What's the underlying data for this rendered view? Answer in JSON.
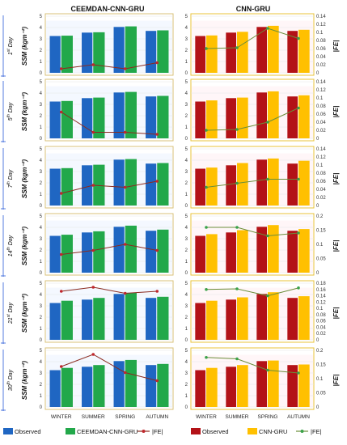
{
  "titles": {
    "left": "CEEMDAN-CNN-GRU",
    "right": "CNN-GRU"
  },
  "y_label": "SSM (kgm⁻²)",
  "y2_label": "|FE|",
  "days": [
    "1st Day",
    "5th Day",
    "7th Day",
    "14th Day",
    "21st Day",
    "30th Day"
  ],
  "legends": {
    "left": [
      "Observed",
      "CEEMDAN-CNN-GRU",
      "|FE|"
    ],
    "right": [
      "Observed",
      "CNN-GRU",
      "|FE|"
    ]
  },
  "colors": {
    "observed_left": "#1f66c2",
    "pred_left": "#22a84a",
    "fe_left": "#8b2a1e",
    "observed_right": "#b31217",
    "pred_right": "#ffc000",
    "fe_right": "#6b8e3a",
    "panel_border_left": "#d8c27a",
    "panel_border_right": "#e8c33a"
  },
  "chart_data": [
    {
      "type": "bar",
      "model": "CEEMDAN-CNN-GRU",
      "day": "1st Day",
      "categories": [
        "WINTER",
        "SUMMER",
        "SPRING",
        "AUTUMN"
      ],
      "series": [
        {
          "name": "Observed",
          "values": [
            3.25,
            3.55,
            4.05,
            3.7
          ]
        },
        {
          "name": "CEEMDAN-CNN-GRU",
          "values": [
            3.28,
            3.58,
            4.1,
            3.75
          ]
        },
        {
          "name": "|FE|",
          "axis": "secondary",
          "values": [
            0.01,
            0.02,
            0.01,
            0.025
          ]
        }
      ],
      "ylim": [
        0,
        5
      ],
      "y2lim": [
        0,
        0.14
      ]
    },
    {
      "type": "bar",
      "model": "CEEMDAN-CNN-GRU",
      "day": "5th Day",
      "categories": [
        "WINTER",
        "SUMMER",
        "SPRING",
        "AUTUMN"
      ],
      "series": [
        {
          "name": "Observed",
          "values": [
            3.25,
            3.55,
            4.05,
            3.7
          ]
        },
        {
          "name": "CEEMDAN-CNN-GRU",
          "values": [
            3.3,
            3.6,
            4.1,
            3.75
          ]
        },
        {
          "name": "|FE|",
          "axis": "secondary",
          "values": [
            0.065,
            0.015,
            0.015,
            0.01
          ]
        }
      ],
      "ylim": [
        0,
        5
      ],
      "y2lim": [
        0,
        0.14
      ]
    },
    {
      "type": "bar",
      "model": "CEEMDAN-CNN-GRU",
      "day": "7th Day",
      "categories": [
        "WINTER",
        "SUMMER",
        "SPRING",
        "AUTUMN"
      ],
      "series": [
        {
          "name": "Observed",
          "values": [
            3.25,
            3.55,
            4.05,
            3.7
          ]
        },
        {
          "name": "CEEMDAN-CNN-GRU",
          "values": [
            3.3,
            3.6,
            4.1,
            3.75
          ]
        },
        {
          "name": "|FE|",
          "axis": "secondary",
          "values": [
            0.03,
            0.05,
            0.045,
            0.06
          ]
        }
      ],
      "ylim": [
        0,
        5
      ],
      "y2lim": [
        0,
        0.14
      ]
    },
    {
      "type": "bar",
      "model": "CEEMDAN-CNN-GRU",
      "day": "14th Day",
      "categories": [
        "WINTER",
        "SUMMER",
        "SPRING",
        "AUTUMN"
      ],
      "series": [
        {
          "name": "Observed",
          "values": [
            3.25,
            3.55,
            4.05,
            3.7
          ]
        },
        {
          "name": "CEEMDAN-CNN-GRU",
          "values": [
            3.35,
            3.65,
            4.15,
            3.8
          ]
        },
        {
          "name": "|FE|",
          "axis": "secondary",
          "values": [
            0.045,
            0.055,
            0.07,
            0.055
          ]
        }
      ],
      "ylim": [
        0,
        5
      ],
      "y2lim": [
        0,
        0.14
      ]
    },
    {
      "type": "bar",
      "model": "CEEMDAN-CNN-GRU",
      "day": "21st Day",
      "categories": [
        "WINTER",
        "SUMMER",
        "SPRING",
        "AUTUMN"
      ],
      "series": [
        {
          "name": "Observed",
          "values": [
            3.25,
            3.55,
            4.05,
            3.7
          ]
        },
        {
          "name": "CEEMDAN-CNN-GRU",
          "values": [
            3.45,
            3.7,
            4.15,
            3.8
          ]
        },
        {
          "name": "|FE|",
          "axis": "secondary",
          "values": [
            0.12,
            0.13,
            0.115,
            0.12
          ]
        }
      ],
      "ylim": [
        0,
        5
      ],
      "y2lim": [
        0,
        0.14
      ]
    },
    {
      "type": "bar",
      "model": "CEEMDAN-CNN-GRU",
      "day": "30th Day",
      "categories": [
        "WINTER",
        "SUMMER",
        "SPRING",
        "AUTUMN"
      ],
      "series": [
        {
          "name": "Observed",
          "values": [
            3.25,
            3.55,
            4.05,
            3.7
          ]
        },
        {
          "name": "CEEMDAN-CNN-GRU",
          "values": [
            3.45,
            3.7,
            4.15,
            3.8
          ]
        },
        {
          "name": "|FE|",
          "axis": "secondary",
          "values": [
            0.1,
            0.13,
            0.085,
            0.065
          ]
        }
      ],
      "ylim": [
        0,
        5
      ],
      "y2lim": [
        0,
        0.14
      ]
    },
    {
      "type": "bar",
      "model": "CNN-GRU",
      "day": "1st Day",
      "categories": [
        "WINTER",
        "SUMMER",
        "SPRING",
        "AUTUMN"
      ],
      "series": [
        {
          "name": "Observed",
          "values": [
            3.25,
            3.55,
            4.05,
            3.7
          ]
        },
        {
          "name": "CNN-GRU",
          "values": [
            3.3,
            3.62,
            4.15,
            3.8
          ]
        },
        {
          "name": "|FE|",
          "axis": "secondary",
          "values": [
            0.06,
            0.062,
            0.11,
            0.085
          ]
        }
      ],
      "ylim": [
        0,
        5
      ],
      "y2lim": [
        0,
        0.14
      ],
      "y2ticks": [
        0,
        0.02,
        0.04,
        0.06,
        0.08,
        0.1,
        0.12,
        0.14
      ]
    },
    {
      "type": "bar",
      "model": "CNN-GRU",
      "day": "5th Day",
      "categories": [
        "WINTER",
        "SUMMER",
        "SPRING",
        "AUTUMN"
      ],
      "series": [
        {
          "name": "Observed",
          "values": [
            3.25,
            3.55,
            4.05,
            3.7
          ]
        },
        {
          "name": "CNN-GRU",
          "values": [
            3.35,
            3.6,
            4.15,
            3.8
          ]
        },
        {
          "name": "|FE|",
          "axis": "secondary",
          "values": [
            0.02,
            0.022,
            0.04,
            0.075
          ]
        }
      ],
      "ylim": [
        0,
        5
      ],
      "y2lim": [
        0,
        0.14
      ],
      "y2ticks": [
        0,
        0.02,
        0.04,
        0.06,
        0.08,
        0.1,
        0.12,
        0.14
      ]
    },
    {
      "type": "bar",
      "model": "CNN-GRU",
      "day": "7th Day",
      "categories": [
        "WINTER",
        "SUMMER",
        "SPRING",
        "AUTUMN"
      ],
      "series": [
        {
          "name": "Observed",
          "values": [
            3.25,
            3.55,
            4.05,
            3.7
          ]
        },
        {
          "name": "CNN-GRU",
          "values": [
            3.35,
            3.75,
            4.15,
            3.95
          ]
        },
        {
          "name": "|FE|",
          "axis": "secondary",
          "values": [
            0.045,
            0.055,
            0.065,
            0.065
          ]
        }
      ],
      "ylim": [
        0,
        5
      ],
      "y2lim": [
        0,
        0.14
      ],
      "y2ticks": [
        0,
        0.02,
        0.04,
        0.06,
        0.08,
        0.1,
        0.12,
        0.14
      ]
    },
    {
      "type": "bar",
      "model": "CNN-GRU",
      "day": "14th Day",
      "categories": [
        "WINTER",
        "SUMMER",
        "SPRING",
        "AUTUMN"
      ],
      "series": [
        {
          "name": "Observed",
          "values": [
            3.25,
            3.55,
            4.05,
            3.7
          ]
        },
        {
          "name": "CNN-GRU",
          "values": [
            3.4,
            3.75,
            4.2,
            3.85
          ]
        },
        {
          "name": "|FE|",
          "axis": "secondary",
          "values": [
            0.16,
            0.16,
            0.13,
            0.14
          ]
        }
      ],
      "ylim": [
        0,
        5
      ],
      "y2lim": [
        0,
        0.2
      ],
      "y2ticks": [
        0,
        0.05,
        0.1,
        0.15,
        0.2
      ]
    },
    {
      "type": "bar",
      "model": "CNN-GRU",
      "day": "21st Day",
      "categories": [
        "WINTER",
        "SUMMER",
        "SPRING",
        "AUTUMN"
      ],
      "series": [
        {
          "name": "Observed",
          "values": [
            3.25,
            3.55,
            4.05,
            3.7
          ]
        },
        {
          "name": "CNN-GRU",
          "values": [
            3.45,
            3.75,
            4.2,
            3.85
          ]
        },
        {
          "name": "|FE|",
          "axis": "secondary",
          "values": [
            0.16,
            0.162,
            0.14,
            0.165
          ]
        }
      ],
      "ylim": [
        0,
        5
      ],
      "y2lim": [
        0,
        0.18
      ],
      "y2ticks": [
        0,
        0.02,
        0.04,
        0.06,
        0.08,
        0.1,
        0.12,
        0.14,
        0.16,
        0.18
      ]
    },
    {
      "type": "bar",
      "model": "CNN-GRU",
      "day": "30th Day",
      "categories": [
        "WINTER",
        "SUMMER",
        "SPRING",
        "AUTUMN"
      ],
      "series": [
        {
          "name": "Observed",
          "values": [
            3.25,
            3.55,
            4.05,
            3.7
          ]
        },
        {
          "name": "CNN-GRU",
          "values": [
            3.45,
            3.7,
            4.1,
            3.75
          ]
        },
        {
          "name": "|FE|",
          "axis": "secondary",
          "values": [
            0.175,
            0.17,
            0.13,
            0.12
          ]
        }
      ],
      "ylim": [
        0,
        5
      ],
      "y2lim": [
        0,
        0.2
      ],
      "y2ticks": [
        0,
        0.05,
        0.1,
        0.15,
        0.2
      ]
    }
  ]
}
